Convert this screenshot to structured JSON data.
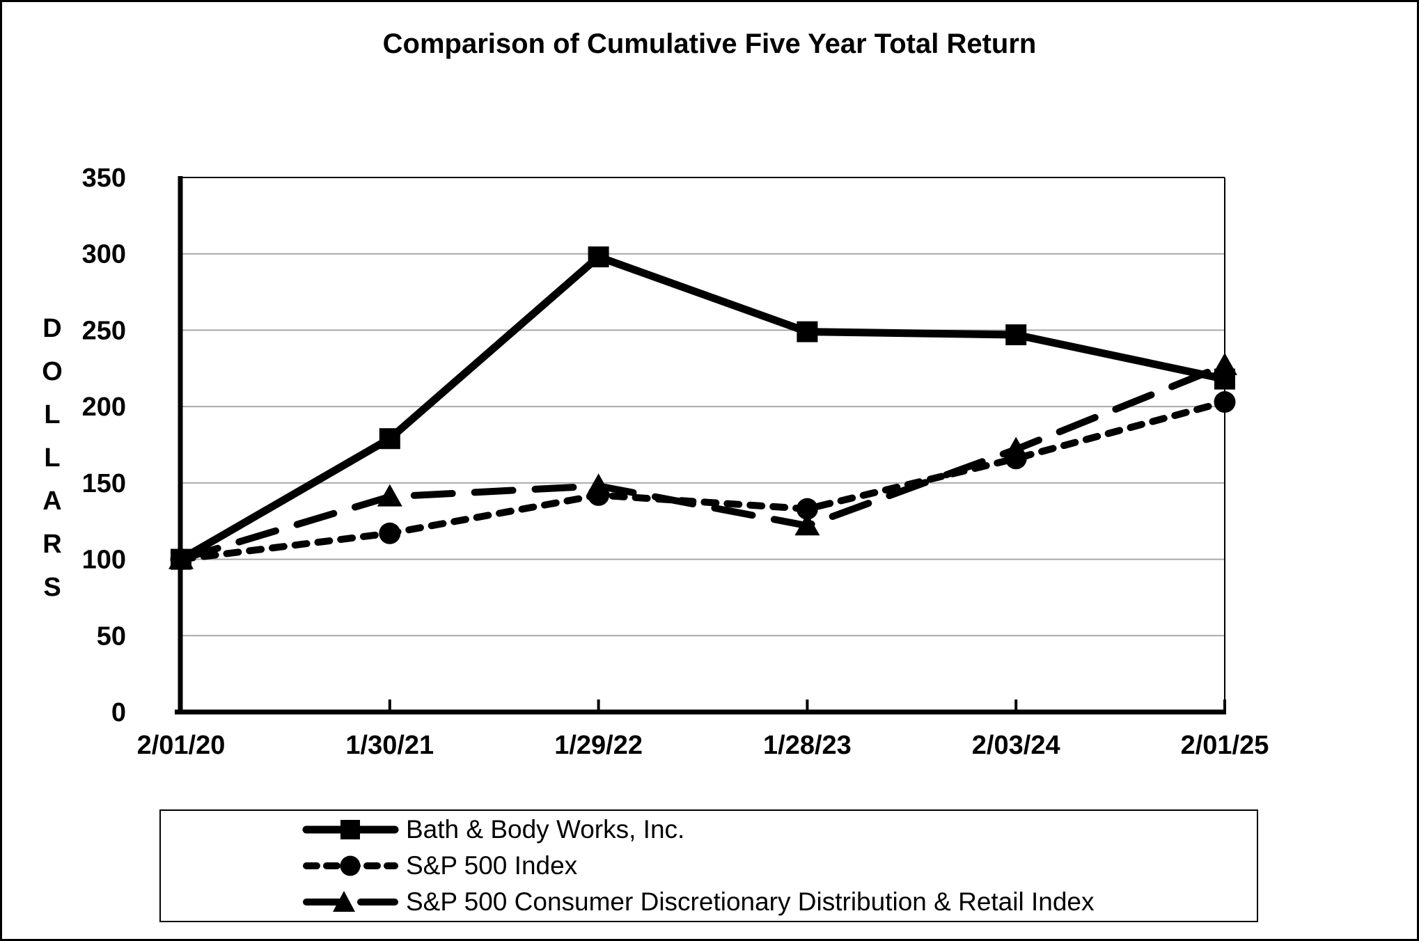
{
  "title": "Comparison of Cumulative Five Year Total Return",
  "y_axis_label": "DOLLARS",
  "chart_data": {
    "type": "line",
    "title": "Comparison of Cumulative Five Year Total Return",
    "categories": [
      "2/01/20",
      "1/30/21",
      "1/29/22",
      "1/28/23",
      "2/03/24",
      "2/01/25"
    ],
    "y_ticks": [
      0,
      50,
      100,
      150,
      200,
      250,
      300,
      350
    ],
    "ylim": [
      0,
      350
    ],
    "ylabel": "DOLLARS",
    "xlabel": "",
    "grid": true,
    "legend_position": "bottom",
    "line_color": "#000000",
    "grid_color": "#a8a8a8",
    "series": [
      {
        "name": "Bath & Body Works, Inc.",
        "marker": "square",
        "line_style": "solid",
        "values": [
          100,
          179,
          298,
          249,
          247,
          218
        ]
      },
      {
        "name": "S&P 500 Index",
        "marker": "circle",
        "line_style": "dotted",
        "values": [
          100,
          117,
          142,
          133,
          166,
          203
        ]
      },
      {
        "name": "S&P 500 Consumer Discretionary Distribution & Retail Index",
        "marker": "triangle",
        "line_style": "dashed",
        "values": [
          100,
          141,
          148,
          122,
          172,
          227
        ]
      }
    ]
  }
}
